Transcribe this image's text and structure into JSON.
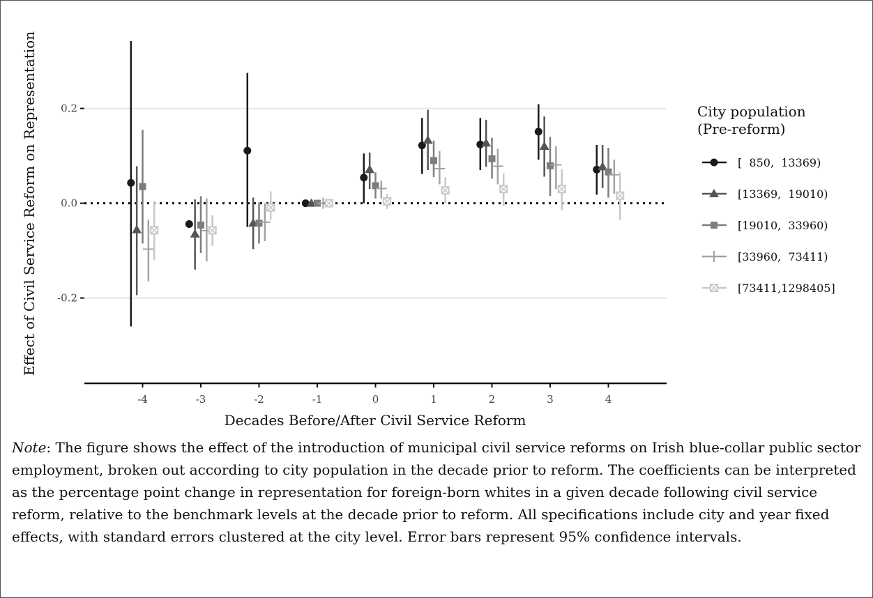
{
  "chart_data": {
    "type": "scatter",
    "subtype": "coefficient plot with 95% confidence intervals",
    "xlabel": "Decades Before/After Civil Service Reform",
    "ylabel": "Effect of Civil Service Reform on Representation",
    "x_ticks": [
      "-4",
      "-3",
      "-2",
      "-1",
      "0",
      "1",
      "2",
      "3",
      "4"
    ],
    "y_ticks": [
      "-0.2",
      "0.0",
      "0.2"
    ],
    "xlim": [
      -5,
      5
    ],
    "ylim": [
      -0.38,
      0.37
    ],
    "reference_line": {
      "y": 0.0,
      "style": "dotted"
    },
    "grid": "horizontal major lines only",
    "legend": {
      "title_line1": "City population",
      "title_line2": "(Pre-reform)",
      "position": "right"
    },
    "series": [
      {
        "name": "[  850,  13369)",
        "marker": "circle",
        "color": "#1a1a1a",
        "x": [
          -4,
          -3,
          -2,
          -1,
          0,
          1,
          2,
          3,
          4
        ],
        "y": [
          0.043,
          -0.044,
          0.111,
          0.0,
          0.054,
          0.122,
          0.124,
          0.151,
          0.071
        ],
        "ci_low": [
          -0.26,
          null,
          -0.05,
          null,
          0.0,
          0.062,
          0.07,
          0.092,
          0.018
        ],
        "ci_high": [
          0.342,
          null,
          0.275,
          null,
          0.105,
          0.18,
          0.18,
          0.209,
          0.123
        ]
      },
      {
        "name": "[13369,  19010)",
        "marker": "triangle",
        "color": "#555555",
        "x": [
          -4,
          -3,
          -2,
          -1,
          0,
          1,
          2,
          3,
          4
        ],
        "y": [
          -0.056,
          -0.065,
          -0.042,
          0.0,
          0.071,
          0.133,
          0.127,
          0.12,
          0.077
        ],
        "ci_low": [
          -0.194,
          -0.14,
          -0.097,
          null,
          0.03,
          0.07,
          0.077,
          0.056,
          0.032
        ],
        "ci_high": [
          0.078,
          0.008,
          0.012,
          null,
          0.107,
          0.197,
          0.176,
          0.183,
          0.123
        ]
      },
      {
        "name": "[19010,  33960)",
        "marker": "square",
        "color": "#7d7d7d",
        "x": [
          -4,
          -3,
          -2,
          -1,
          0,
          1,
          2,
          3,
          4
        ],
        "y": [
          0.035,
          -0.046,
          -0.042,
          0.0,
          0.037,
          0.09,
          0.094,
          0.079,
          0.066
        ],
        "ci_low": [
          -0.085,
          -0.105,
          -0.085,
          null,
          0.01,
          0.055,
          0.052,
          0.015,
          0.012
        ],
        "ci_high": [
          0.155,
          0.015,
          0.002,
          null,
          0.065,
          0.132,
          0.138,
          0.14,
          0.117
        ]
      },
      {
        "name": "[33960,  73411)",
        "marker": "plus",
        "color": "#a3a3a3",
        "x": [
          -4,
          -3,
          -2,
          -1,
          0,
          1,
          2,
          3,
          4
        ],
        "y": [
          -0.097,
          -0.058,
          -0.04,
          0.0,
          0.031,
          0.073,
          0.078,
          0.081,
          0.06
        ],
        "ci_low": [
          -0.165,
          -0.123,
          -0.08,
          null,
          0.01,
          0.04,
          0.04,
          0.03,
          0.02
        ],
        "ci_high": [
          -0.035,
          0.01,
          0.0,
          null,
          0.048,
          0.11,
          0.115,
          0.12,
          0.092
        ]
      },
      {
        "name": "[73411,1298405]",
        "marker": "square-cross",
        "color": "#c8c8c8",
        "x": [
          -4,
          -3,
          -2,
          -1,
          0,
          1,
          2,
          3,
          4
        ],
        "y": [
          -0.057,
          -0.057,
          -0.009,
          0.0,
          0.004,
          0.027,
          0.03,
          0.03,
          0.016
        ],
        "ci_low": [
          -0.12,
          -0.09,
          -0.035,
          null,
          -0.012,
          0.0,
          -0.005,
          -0.015,
          -0.035
        ],
        "ci_high": [
          0.005,
          -0.025,
          0.025,
          null,
          0.02,
          0.055,
          0.063,
          0.072,
          0.065
        ]
      }
    ]
  },
  "note": {
    "label": "Note",
    "text": ": The figure shows the effect of the introduction of municipal civil service reforms on Irish blue-collar public sector employment, broken out according to city population in the decade prior to reform. The coefficients can be interpreted as the percentage point change in representation for foreign-born whites in a given decade following civil service reform, relative to the benchmark levels at the decade prior to reform. All specifications include city and year fixed effects, with standard errors clustered at the city level. Error bars represent 95% confidence intervals."
  }
}
